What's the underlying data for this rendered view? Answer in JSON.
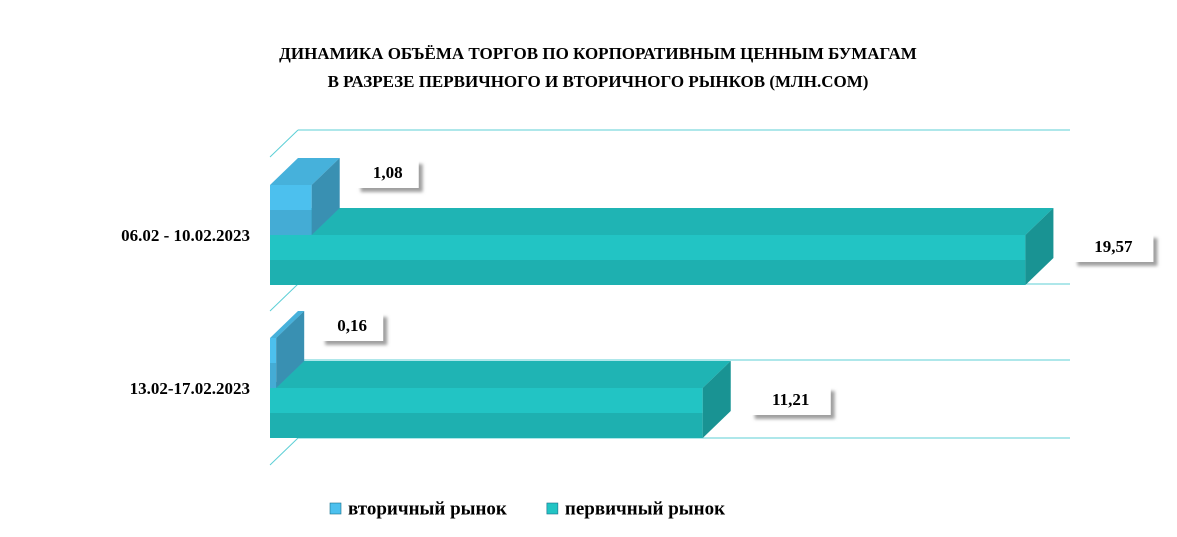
{
  "chart_data": {
    "type": "bar3d_h",
    "title": [
      "ДИНАМИКА ОБЪЁМА ТОРГОВ ПО КОРПОРАТИВНЫМ ЦЕННЫМ БУМАГАМ",
      "В РАЗРЕЗЕ ПЕРВИЧНОГО И ВТОРИЧНОГО РЫНКОВ  (МЛН.СОМ)"
    ],
    "categories": [
      "06.02 - 10.02.2023",
      "13.02-17.02.2023"
    ],
    "series": [
      {
        "name": "вторичный рынок",
        "color": "#4cc0ee",
        "values": [
          1.08,
          0.16
        ],
        "value_labels": [
          "1,08",
          "0,16"
        ]
      },
      {
        "name": "первичный рынок",
        "color": "#22c4c4",
        "values": [
          19.57,
          11.21
        ],
        "value_labels": [
          "19,57",
          "11,21"
        ]
      }
    ],
    "xlim": [
      0,
      20
    ],
    "legend": "bottom"
  }
}
